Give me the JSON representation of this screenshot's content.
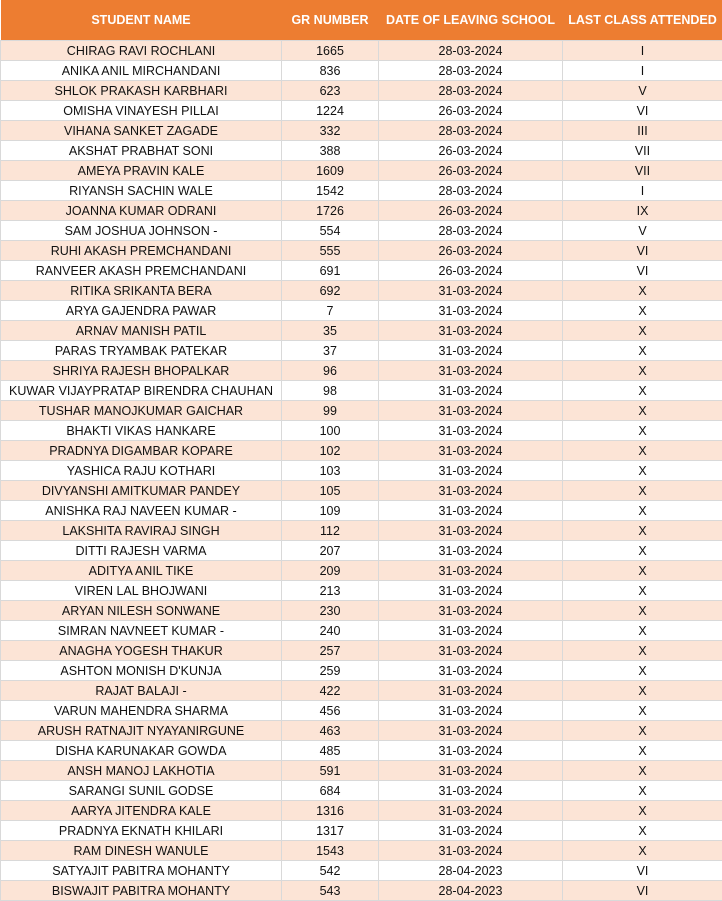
{
  "table": {
    "columns": [
      "STUDENT NAME",
      "GR NUMBER",
      "DATE OF LEAVING SCHOOL",
      "LAST CLASS ATTENDED"
    ],
    "rows": [
      [
        "CHIRAG RAVI ROCHLANI",
        1665,
        "28-03-2024",
        "I"
      ],
      [
        "ANIKA ANIL MIRCHANDANI",
        836,
        "28-03-2024",
        "I"
      ],
      [
        "SHLOK PRAKASH KARBHARI",
        623,
        "28-03-2024",
        "V"
      ],
      [
        "OMISHA VINAYESH PILLAI",
        1224,
        "26-03-2024",
        "VI"
      ],
      [
        "VIHANA SANKET ZAGADE",
        332,
        "28-03-2024",
        "III"
      ],
      [
        "AKSHAT PRABHAT SONI",
        388,
        "26-03-2024",
        "VII"
      ],
      [
        "AMEYA PRAVIN KALE",
        1609,
        "26-03-2024",
        "VII"
      ],
      [
        "RIYANSH SACHIN WALE",
        1542,
        "28-03-2024",
        "I"
      ],
      [
        "JOANNA KUMAR ODRANI",
        1726,
        "26-03-2024",
        "IX"
      ],
      [
        "SAM JOSHUA JOHNSON -",
        554,
        "28-03-2024",
        "V"
      ],
      [
        "RUHI AKASH PREMCHANDANI",
        555,
        "26-03-2024",
        "VI"
      ],
      [
        "RANVEER AKASH PREMCHANDANI",
        691,
        "26-03-2024",
        "VI"
      ],
      [
        "RITIKA SRIKANTA BERA",
        692,
        "31-03-2024",
        "X"
      ],
      [
        "ARYA GAJENDRA PAWAR",
        7,
        "31-03-2024",
        "X"
      ],
      [
        "ARNAV MANISH PATIL",
        35,
        "31-03-2024",
        "X"
      ],
      [
        "PARAS TRYAMBAK PATEKAR",
        37,
        "31-03-2024",
        "X"
      ],
      [
        "SHRIYA RAJESH BHOPALKAR",
        96,
        "31-03-2024",
        "X"
      ],
      [
        "KUWAR VIJAYPRATAP BIRENDRA CHAUHAN",
        98,
        "31-03-2024",
        "X"
      ],
      [
        "TUSHAR MANOJKUMAR GAICHAR",
        99,
        "31-03-2024",
        "X"
      ],
      [
        "BHAKTI VIKAS HANKARE",
        100,
        "31-03-2024",
        "X"
      ],
      [
        "PRADNYA DIGAMBAR KOPARE",
        102,
        "31-03-2024",
        "X"
      ],
      [
        "YASHICA RAJU KOTHARI",
        103,
        "31-03-2024",
        "X"
      ],
      [
        "DIVYANSHI AMITKUMAR PANDEY",
        105,
        "31-03-2024",
        "X"
      ],
      [
        "ANISHKA RAJ NAVEEN KUMAR -",
        109,
        "31-03-2024",
        "X"
      ],
      [
        "LAKSHITA RAVIRAJ SINGH",
        112,
        "31-03-2024",
        "X"
      ],
      [
        "DITTI RAJESH VARMA",
        207,
        "31-03-2024",
        "X"
      ],
      [
        "ADITYA ANIL TIKE",
        209,
        "31-03-2024",
        "X"
      ],
      [
        "VIREN LAL BHOJWANI",
        213,
        "31-03-2024",
        "X"
      ],
      [
        "ARYAN NILESH SONWANE",
        230,
        "31-03-2024",
        "X"
      ],
      [
        "SIMRAN NAVNEET KUMAR -",
        240,
        "31-03-2024",
        "X"
      ],
      [
        "ANAGHA YOGESH THAKUR",
        257,
        "31-03-2024",
        "X"
      ],
      [
        "ASHTON MONISH D'KUNJA",
        259,
        "31-03-2024",
        "X"
      ],
      [
        "RAJAT BALAJI -",
        422,
        "31-03-2024",
        "X"
      ],
      [
        "VARUN MAHENDRA SHARMA",
        456,
        "31-03-2024",
        "X"
      ],
      [
        "ARUSH RATNAJIT NYAYANIRGUNE",
        463,
        "31-03-2024",
        "X"
      ],
      [
        "DISHA KARUNAKAR GOWDA",
        485,
        "31-03-2024",
        "X"
      ],
      [
        "ANSH MANOJ LAKHOTIA",
        591,
        "31-03-2024",
        "X"
      ],
      [
        "SARANGI SUNIL GODSE",
        684,
        "31-03-2024",
        "X"
      ],
      [
        "AARYA JITENDRA KALE",
        1316,
        "31-03-2024",
        "X"
      ],
      [
        "PRADNYA EKNATH KHILARI",
        1317,
        "31-03-2024",
        "X"
      ],
      [
        "RAM DINESH WANULE",
        1543,
        "31-03-2024",
        "X"
      ],
      [
        "SATYAJIT PABITRA MOHANTY",
        542,
        "28-04-2023",
        "VI"
      ],
      [
        "BISWAJIT PABITRA MOHANTY",
        543,
        "28-04-2023",
        "VI"
      ]
    ]
  }
}
